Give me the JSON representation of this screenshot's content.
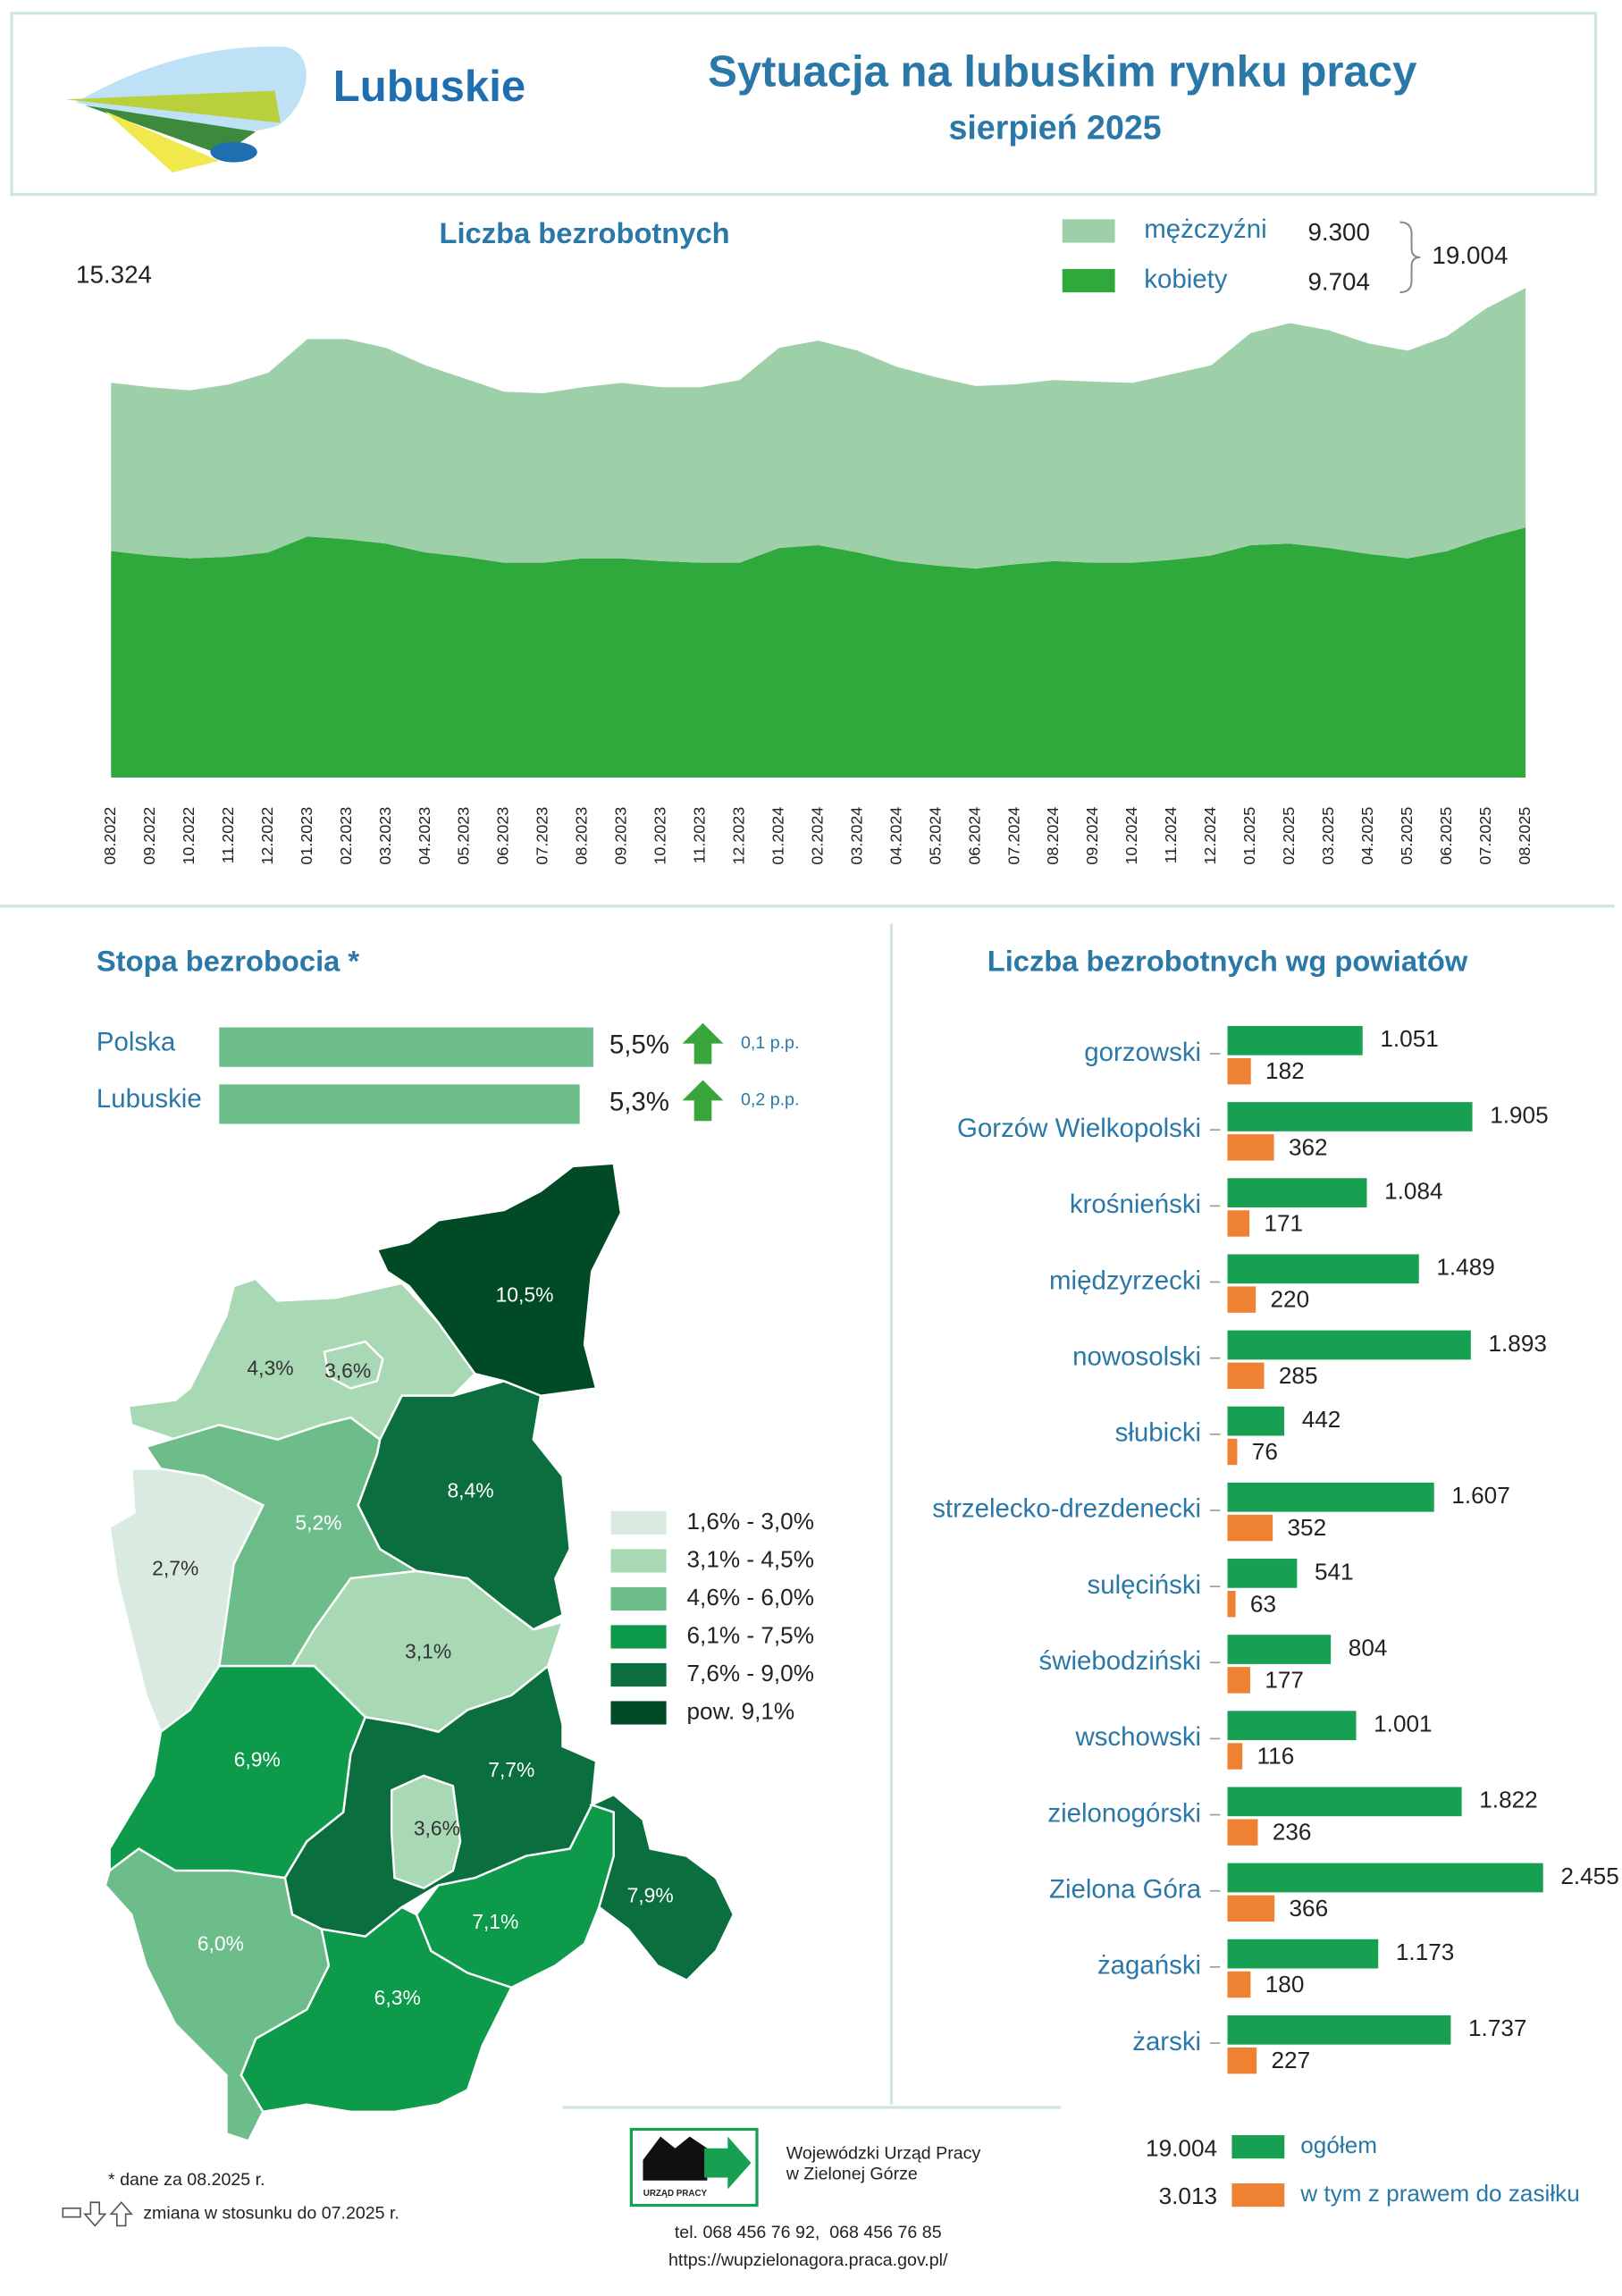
{
  "header": {
    "logo_text": "Lubuskie",
    "title": "Sytuacja na lubuskim rynku pracy",
    "subtitle": "sierpień 2025"
  },
  "chart_data": [
    {
      "type": "area",
      "title": "Liczba bezrobotnych",
      "stacked": true,
      "first_total_label": "15.324",
      "total_label": "19.004",
      "categories": [
        "08.2022",
        "09.2022",
        "10.2022",
        "11.2022",
        "12.2022",
        "01.2023",
        "02.2023",
        "03.2023",
        "04.2023",
        "05.2023",
        "06.2023",
        "07.2023",
        "08.2023",
        "09.2023",
        "10.2023",
        "11.2023",
        "12.2023",
        "01.2024",
        "02.2024",
        "03.2024",
        "04.2024",
        "05.2024",
        "06.2024",
        "07.2024",
        "08.2024",
        "09.2024",
        "10.2024",
        "11.2024",
        "12.2024",
        "01.2025",
        "02.2025",
        "03.2025",
        "04.2025",
        "05.2025",
        "06.2025",
        "07.2025",
        "08.2025"
      ],
      "series": [
        {
          "name": "mężczyźni",
          "color": "#9dcfa9",
          "legend_value_label": "9.300",
          "values": [
            6534,
            6530,
            6520,
            6690,
            6970,
            7660,
            7770,
            7600,
            7260,
            6920,
            6640,
            6580,
            6640,
            6810,
            6750,
            6810,
            7090,
            7770,
            7940,
            7830,
            7540,
            7310,
            7090,
            6980,
            7030,
            7030,
            6980,
            7210,
            7380,
            8230,
            8560,
            8450,
            8170,
            8060,
            8340,
            8910,
            9300
          ]
        },
        {
          "name": "kobiety",
          "color": "#2fa83c",
          "legend_value_label": "9.704",
          "values": [
            8790,
            8620,
            8510,
            8570,
            8740,
            9360,
            9250,
            9080,
            8740,
            8570,
            8340,
            8340,
            8510,
            8510,
            8400,
            8340,
            8340,
            8910,
            9020,
            8740,
            8400,
            8230,
            8110,
            8280,
            8400,
            8340,
            8340,
            8450,
            8620,
            9020,
            9080,
            8910,
            8680,
            8510,
            8790,
            9300,
            9704
          ]
        }
      ]
    },
    {
      "type": "hbar",
      "title": "Stopa bezrobocia *",
      "color": "#6dbd8a",
      "arrow_color": "#3aa53a",
      "categories": [
        "Polska",
        "Lubuskie"
      ],
      "values": [
        5.5,
        5.3
      ],
      "value_labels": [
        "5,5%",
        "5,3%"
      ],
      "changes": [
        0.1,
        0.2
      ],
      "change_labels": [
        "0,1 p.p.",
        "0,2 p.p."
      ],
      "change_directions": [
        "up",
        "up"
      ]
    },
    {
      "type": "choropleth",
      "classes": [
        {
          "label": "1,6% - 3,0%",
          "color": "#d9ebe0",
          "min": 1.6,
          "max": 3.0
        },
        {
          "label": "3,1% - 4,5%",
          "color": "#a9d8b4",
          "min": 3.1,
          "max": 4.5
        },
        {
          "label": "4,6% - 6,0%",
          "color": "#6dbd8a",
          "min": 4.6,
          "max": 6.0
        },
        {
          "label": "6,1% - 7,5%",
          "color": "#0d9a4a",
          "min": 6.1,
          "max": 7.5
        },
        {
          "label": "7,6% - 9,0%",
          "color": "#0b6e3e",
          "min": 7.6,
          "max": 9.0
        },
        {
          "label": "pow. 9,1%",
          "color": "#004b26",
          "min": 9.1
        }
      ],
      "regions": [
        {
          "label": "10,5%",
          "value": 10.5
        },
        {
          "label": "4,3%",
          "value": 4.3
        },
        {
          "label": "3,6%",
          "value": 3.6
        },
        {
          "label": "8,4%",
          "value": 8.4
        },
        {
          "label": "5,2%",
          "value": 5.2
        },
        {
          "label": "2,7%",
          "value": 2.7
        },
        {
          "label": "3,1%",
          "value": 3.1
        },
        {
          "label": "6,9%",
          "value": 6.9
        },
        {
          "label": "7,7%",
          "value": 7.7
        },
        {
          "label": "3,6%",
          "value": 3.6
        },
        {
          "label": "7,1%",
          "value": 7.1
        },
        {
          "label": "7,9%",
          "value": 7.9
        },
        {
          "label": "6,3%",
          "value": 6.3
        },
        {
          "label": "6,0%",
          "value": 6.0
        }
      ]
    },
    {
      "type": "grouped-hbar",
      "title": "Liczba bezrobotnych wg powiatów",
      "categories": [
        "gorzowski",
        "Gorzów Wielkopolski",
        "krośnieński",
        "międzyrzecki",
        "nowosolski",
        "słubicki",
        "strzelecko-drezdenecki",
        "sulęciński",
        "świebodziński",
        "wschowski",
        "zielonogórski",
        "Zielona Góra",
        "żagański",
        "żarski"
      ],
      "series": [
        {
          "name": "ogółem",
          "color": "#17a052",
          "total_label": "19.004",
          "values": [
            1051,
            1905,
            1084,
            1489,
            1893,
            442,
            1607,
            541,
            804,
            1001,
            1822,
            2455,
            1173,
            1737
          ],
          "value_labels": [
            "1.051",
            "1.905",
            "1.084",
            "1.489",
            "1.893",
            "442",
            "1.607",
            "541",
            "804",
            "1.001",
            "1.822",
            "2.455",
            "1.173",
            "1.737"
          ]
        },
        {
          "name": "w tym z prawem do zasiłku",
          "color": "#ef8232",
          "total_label": "3.013",
          "values": [
            182,
            362,
            171,
            220,
            285,
            76,
            352,
            63,
            177,
            116,
            236,
            366,
            180,
            227
          ],
          "value_labels": [
            "182",
            "362",
            "171",
            "220",
            "285",
            "76",
            "352",
            "63",
            "177",
            "116",
            "236",
            "366",
            "180",
            "227"
          ]
        }
      ]
    }
  ],
  "footer": {
    "note": "* dane za 08.2025 r.",
    "change_note": "zmiana w stosunku do 07.2025 r.",
    "org_line1": "Wojewódzki Urząd Pracy",
    "org_line2": "w Zielonej Górze",
    "logo_text": "URZĄD PRACY",
    "phone": "tel. 068 456 76 92,  068 456 76 85",
    "url": "https://wupzielonagora.praca.gov.pl/"
  }
}
